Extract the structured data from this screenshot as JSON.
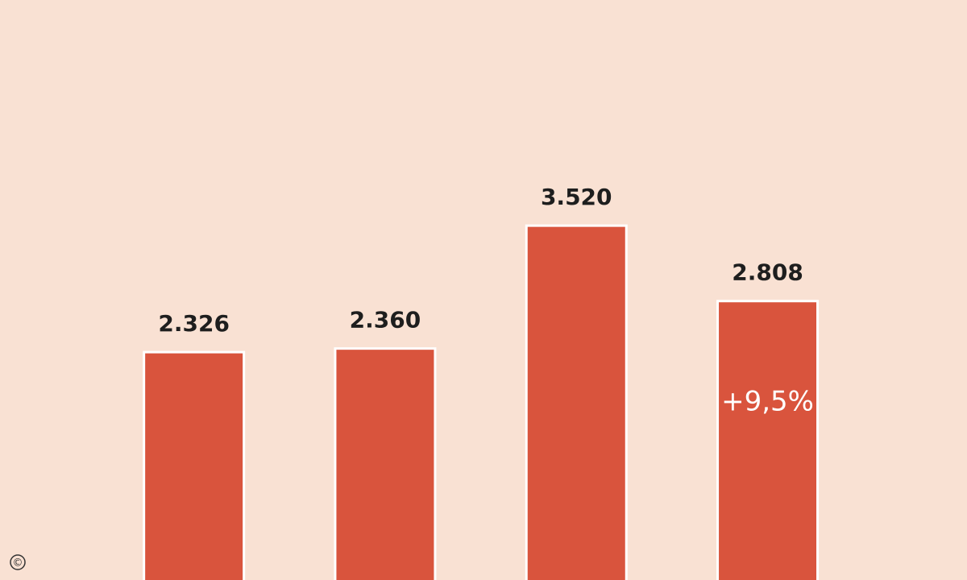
{
  "chart_data": {
    "type": "bar",
    "categories": [
      null,
      null,
      null,
      null
    ],
    "values": [
      2326,
      2360,
      3520,
      2808
    ],
    "value_labels": [
      "2.326",
      "2.360",
      "3.520",
      "2.808"
    ],
    "color": "#d9543d",
    "annotation": "+9,5%",
    "copyright": "©"
  }
}
